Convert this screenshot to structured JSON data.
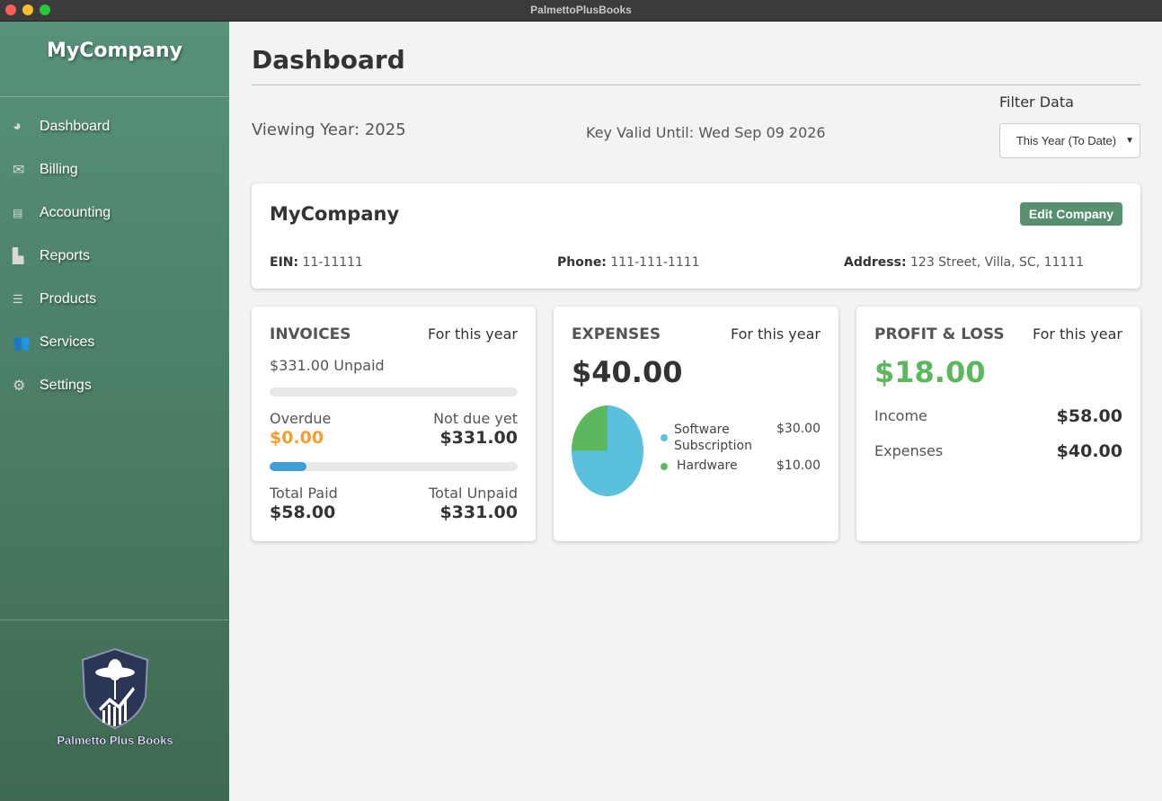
{
  "window": {
    "title": "PalmettoPlusBooks"
  },
  "sidebar": {
    "company": "MyCompany",
    "items": [
      {
        "label": "Dashboard",
        "icon": "pie-chart-icon"
      },
      {
        "label": "Billing",
        "icon": "envelope-icon"
      },
      {
        "label": "Accounting",
        "icon": "calculator-icon"
      },
      {
        "label": "Reports",
        "icon": "bar-chart-icon"
      },
      {
        "label": "Products",
        "icon": "document-icon"
      },
      {
        "label": "Services",
        "icon": "users-icon"
      },
      {
        "label": "Settings",
        "icon": "gear-icon"
      }
    ],
    "logo_text": "Palmetto Plus Books"
  },
  "header": {
    "title": "Dashboard",
    "viewing_year": "Viewing Year: 2025",
    "key_valid": "Key Valid Until: Wed Sep 09 2026",
    "filter_label": "Filter Data",
    "filter_value": "This Year (To Date)"
  },
  "company": {
    "name": "MyCompany",
    "edit_label": "Edit Company",
    "ein_label": "EIN:",
    "ein": "11-11111",
    "phone_label": "Phone:",
    "phone": "111-111-1111",
    "address_label": "Address:",
    "address": "123 Street, Villa, SC, 11111"
  },
  "invoices": {
    "title": "INVOICES",
    "period": "For this year",
    "unpaid_summary": "$331.00 Unpaid",
    "overdue_label": "Overdue",
    "overdue": "$0.00",
    "not_due_label": "Not due yet",
    "not_due": "$331.00",
    "paid_fraction": 0.15,
    "total_paid_label": "Total Paid",
    "total_paid": "$58.00",
    "total_unpaid_label": "Total Unpaid",
    "total_unpaid": "$331.00"
  },
  "expenses": {
    "title": "EXPENSES",
    "period": "For this year",
    "total": "$40.00",
    "chart_data": {
      "type": "pie",
      "slices": [
        {
          "label": "Software Subscription",
          "value": 30,
          "display": "$30.00",
          "color": "#5bc0de"
        },
        {
          "label": "Hardware",
          "value": 10,
          "display": "$10.00",
          "color": "#5cb85c"
        }
      ]
    }
  },
  "pnl": {
    "title": "PROFIT & LOSS",
    "period": "For this year",
    "net": "$18.00",
    "income_label": "Income",
    "income": "$58.00",
    "expenses_label": "Expenses",
    "expenses": "$40.00"
  },
  "colors": {
    "accent": "#57906f",
    "overdue": "#f0a030",
    "profit": "#5cb85c",
    "progress": "#3f9fd5"
  }
}
